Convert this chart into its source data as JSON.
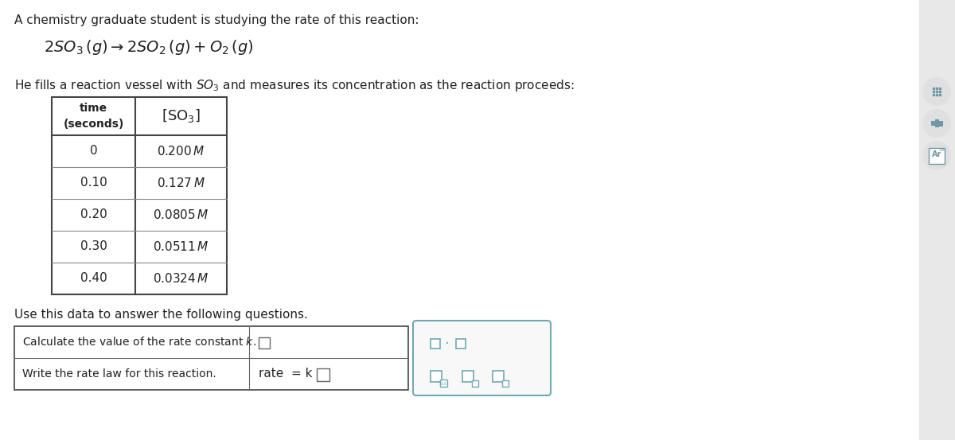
{
  "bg_color": "#ffffff",
  "text_color": "#222222",
  "intro_text": "A chemistry graduate student is studying the rate of this reaction:",
  "vessel_text_pre": "He fills a reaction vessel with ",
  "vessel_text_post": " and measures its concentration as the reaction proceeds:",
  "use_text": "Use this data to answer the following questions.",
  "q1_text": "Write the rate law for this reaction.",
  "q2_text": "Calculate the value of the rate constant  k.",
  "table_times": [
    "0",
    "0.10",
    "0.20",
    "0.30",
    "0.40"
  ],
  "table_concs": [
    "0.200",
    "0.127",
    "0.0805",
    "0.0511",
    "0.0324"
  ],
  "icon_color": "#6aabb8",
  "icon_bg": "#e0e0e0",
  "sidebar_bg": "#e8e8e8",
  "panel_color": "#6aabb8",
  "panel_bg": "#f8f8f8"
}
